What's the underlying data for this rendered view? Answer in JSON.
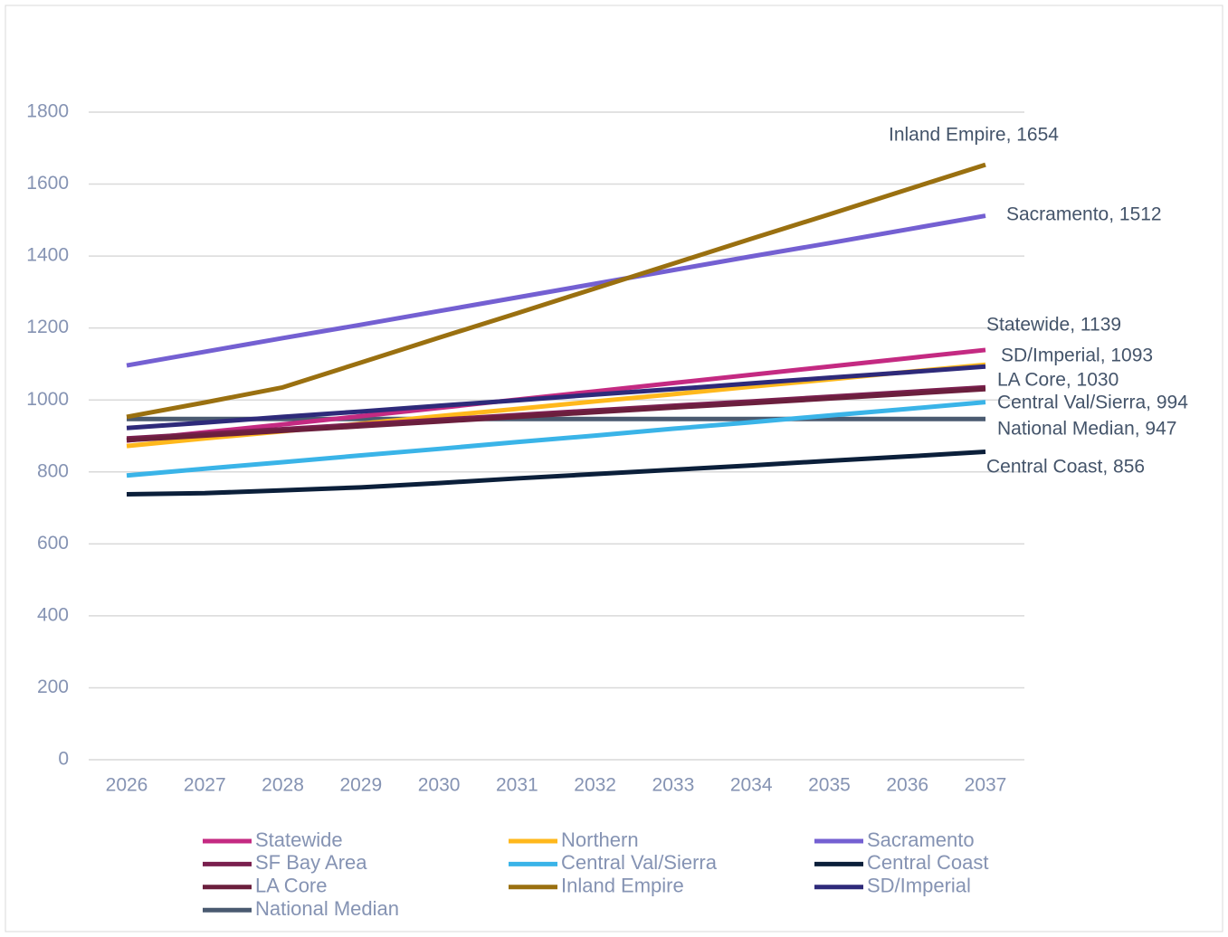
{
  "chart_data": {
    "type": "line",
    "categories": [
      2026,
      2027,
      2028,
      2029,
      2030,
      2031,
      2032,
      2033,
      2034,
      2035,
      2036,
      2037
    ],
    "ylim": [
      0,
      1800
    ],
    "yticks": [
      0,
      200,
      400,
      600,
      800,
      1000,
      1200,
      1400,
      1600,
      1800
    ],
    "grid": true,
    "legend": "bottom",
    "series": [
      {
        "name": "Statewide",
        "color": "#c42a82",
        "end_label": "Statewide, 1139",
        "values": [
          887,
          910,
          932,
          955,
          978,
          1001,
          1024,
          1047,
          1070,
          1093,
          1116,
          1139
        ]
      },
      {
        "name": "Northern",
        "color": "#ffb81c",
        "values": [
          872,
          893,
          913,
          934,
          955,
          975,
          996,
          1016,
          1037,
          1057,
          1078,
          1098
        ]
      },
      {
        "name": "Sacramento",
        "color": "#7460d2",
        "end_label": "Sacramento, 1512",
        "values": [
          1096,
          1134,
          1172,
          1209,
          1247,
          1285,
          1323,
          1361,
          1399,
          1436,
          1474,
          1512
        ]
      },
      {
        "name": "SF Bay Area",
        "color": "#7a1f4e",
        "values": [
          893,
          906,
          919,
          932,
          945,
          958,
          971,
          984,
          996,
          1009,
          1022,
          1035
        ]
      },
      {
        "name": "Central Val/Sierra",
        "color": "#3ab4e8",
        "end_label": "Central Val/Sierra, 994",
        "values": [
          790,
          809,
          827,
          846,
          864,
          883,
          901,
          920,
          938,
          957,
          975,
          994
        ]
      },
      {
        "name": "Central Coast",
        "color": "#0b1f3a",
        "end_label": "Central Coast, 856",
        "values": [
          738,
          741,
          749,
          757,
          769,
          782,
          794,
          806,
          818,
          831,
          843,
          856
        ]
      },
      {
        "name": "LA Core",
        "color": "#6b1f3d",
        "end_label": "LA Core, 1030",
        "values": [
          888,
          901,
          914,
          927,
          940,
          953,
          966,
          979,
          991,
          1004,
          1017,
          1030
        ]
      },
      {
        "name": "Inland Empire",
        "color": "#9a7010",
        "end_label": "Inland Empire, 1654",
        "values": [
          953,
          993,
          1035,
          1104,
          1173,
          1241,
          1310,
          1379,
          1448,
          1516,
          1585,
          1654
        ]
      },
      {
        "name": "SD/Imperial",
        "color": "#2e2a7a",
        "end_label": "SD/Imperial, 1093",
        "values": [
          922,
          937,
          953,
          968,
          984,
          999,
          1015,
          1030,
          1046,
          1062,
          1077,
          1093
        ]
      },
      {
        "name": "National Median",
        "color": "#4a5a70",
        "end_label": "National Median, 947",
        "values": [
          947,
          947,
          947,
          947,
          947,
          947,
          947,
          947,
          947,
          947,
          947,
          947
        ]
      }
    ]
  }
}
